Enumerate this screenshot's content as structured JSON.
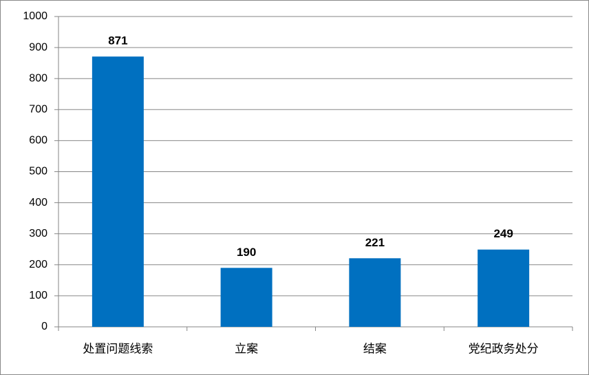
{
  "chart_data": {
    "type": "bar",
    "categories": [
      "处置问题线索",
      "立案",
      "结案",
      "党纪政务处分"
    ],
    "values": [
      871,
      190,
      221,
      249
    ],
    "color": "#0070c0",
    "ylim": [
      0,
      1000
    ],
    "yticks": [
      0,
      100,
      200,
      300,
      400,
      500,
      600,
      700,
      800,
      900,
      1000
    ],
    "grid": true
  }
}
